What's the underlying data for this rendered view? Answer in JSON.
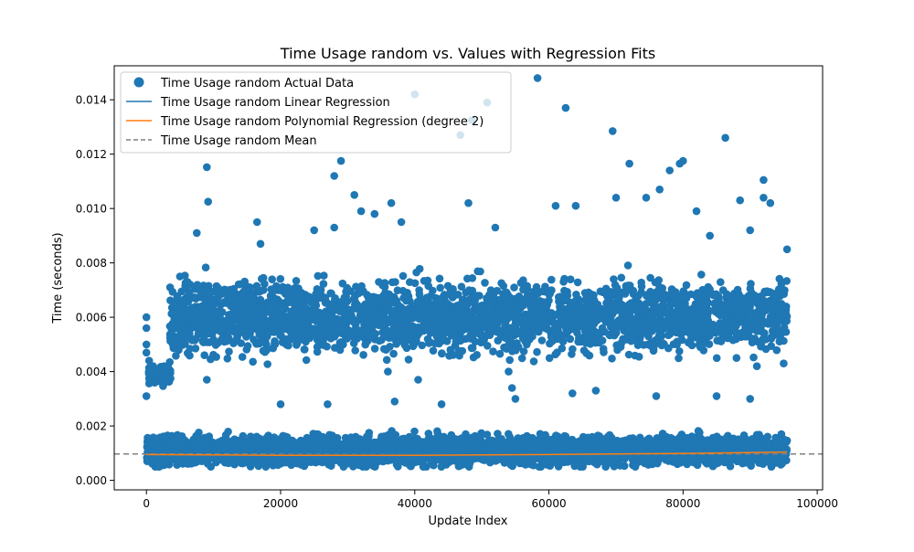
{
  "chart_data": {
    "type": "scatter",
    "title": "Time Usage random vs. Values with Regression Fits",
    "xlabel": "Update Index",
    "ylabel": "Time (seconds)",
    "xlim": [
      -4800,
      100800
    ],
    "ylim": [
      -0.00035,
      0.01525
    ],
    "x_ticks": [
      0,
      20000,
      40000,
      60000,
      80000,
      100000
    ],
    "x_tick_labels": [
      "0",
      "20000",
      "40000",
      "60000",
      "80000",
      "100000"
    ],
    "y_ticks": [
      0.0,
      0.002,
      0.004,
      0.006,
      0.008,
      0.01,
      0.012,
      0.014
    ],
    "y_tick_labels": [
      "0.000",
      "0.002",
      "0.004",
      "0.006",
      "0.008",
      "0.010",
      "0.012",
      "0.014"
    ],
    "grid": false,
    "legend_position": "upper left",
    "colors": {
      "actual": "#1f77b4",
      "linear": "#1f77b4",
      "poly": "#ff7f0e",
      "mean": "#808080"
    },
    "legend": [
      {
        "label": "Time Usage random Actual Data",
        "kind": "marker"
      },
      {
        "label": "Time Usage random Linear Regression",
        "kind": "line"
      },
      {
        "label": "Time Usage random Polynomial Regression (degree 2)",
        "kind": "line"
      },
      {
        "label": "Time Usage random Mean",
        "kind": "dashed"
      }
    ],
    "series": [
      {
        "name": "Time Usage random Actual Data",
        "kind": "scatter",
        "points": [
          [
            0,
            0.006
          ],
          [
            0,
            0.0056
          ],
          [
            0,
            0.005
          ],
          [
            0,
            0.0047
          ],
          [
            0,
            0.0031
          ],
          [
            400,
            0.0044
          ],
          [
            1000,
            0.0042
          ],
          [
            1800,
            0.004
          ],
          [
            2500,
            0.0037
          ],
          [
            3200,
            0.0042
          ],
          [
            5000,
            0.0075
          ],
          [
            7500,
            0.0091
          ],
          [
            9000,
            0.01152
          ],
          [
            9200,
            0.01025
          ],
          [
            9000,
            0.0037
          ],
          [
            3000,
            0.0038
          ],
          [
            16500,
            0.0095
          ],
          [
            17000,
            0.0087
          ],
          [
            25000,
            0.0092
          ],
          [
            28000,
            0.0093
          ],
          [
            28000,
            0.0112
          ],
          [
            29000,
            0.01175
          ],
          [
            31000,
            0.0105
          ],
          [
            32000,
            0.0099
          ],
          [
            34000,
            0.0098
          ],
          [
            36500,
            0.0102
          ],
          [
            38000,
            0.0095
          ],
          [
            40000,
            0.0142
          ],
          [
            40500,
            0.0037
          ],
          [
            36000,
            0.004
          ],
          [
            46800,
            0.0127
          ],
          [
            48500,
            0.01325
          ],
          [
            50800,
            0.0139
          ],
          [
            48000,
            0.0102
          ],
          [
            52000,
            0.0093
          ],
          [
            54000,
            0.004
          ],
          [
            54500,
            0.0034
          ],
          [
            55000,
            0.003
          ],
          [
            58300,
            0.0148
          ],
          [
            61000,
            0.0101
          ],
          [
            62500,
            0.0137
          ],
          [
            64000,
            0.0101
          ],
          [
            69500,
            0.01285
          ],
          [
            70000,
            0.0104
          ],
          [
            72000,
            0.01165
          ],
          [
            74500,
            0.0104
          ],
          [
            76500,
            0.0107
          ],
          [
            78000,
            0.0114
          ],
          [
            79500,
            0.01165
          ],
          [
            80000,
            0.01175
          ],
          [
            82000,
            0.0099
          ],
          [
            84000,
            0.009
          ],
          [
            86300,
            0.0126
          ],
          [
            88500,
            0.0103
          ],
          [
            90000,
            0.0092
          ],
          [
            92000,
            0.01105
          ],
          [
            92000,
            0.0104
          ],
          [
            93000,
            0.0102
          ],
          [
            95500,
            0.0085
          ],
          [
            95000,
            0.0043
          ],
          [
            91000,
            0.0042
          ],
          [
            85000,
            0.0031
          ],
          [
            20000,
            0.0028
          ],
          [
            27000,
            0.0028
          ],
          [
            37000,
            0.0029
          ],
          [
            44000,
            0.0028
          ],
          [
            63500,
            0.0032
          ],
          [
            67000,
            0.0033
          ],
          [
            76000,
            0.0031
          ],
          [
            90000,
            0.003
          ]
        ]
      },
      {
        "name": "Time Usage random Linear Regression",
        "kind": "line",
        "points": [
          [
            0,
            0.00092
          ],
          [
            95500,
            0.00102
          ]
        ]
      },
      {
        "name": "Time Usage random Polynomial Regression (degree 2)",
        "kind": "line",
        "points": [
          [
            0,
            0.00095
          ],
          [
            20000,
            0.00092
          ],
          [
            40000,
            0.00092
          ],
          [
            60000,
            0.00095
          ],
          [
            80000,
            0.00099
          ],
          [
            95500,
            0.00104
          ]
        ]
      },
      {
        "name": "Time Usage random Mean",
        "kind": "hline",
        "y": 0.00097
      }
    ],
    "clusters": [
      {
        "x_range": [
          3500,
          95500
        ],
        "y_center": 0.006,
        "y_spread": 0.0012,
        "count": 2600
      },
      {
        "x_range": [
          0,
          95500
        ],
        "y_center": 0.0011,
        "y_spread": 0.0005,
        "count": 3400
      },
      {
        "x_range": [
          300,
          3600
        ],
        "y_center": 0.0039,
        "y_spread": 0.0003,
        "count": 90
      }
    ]
  }
}
